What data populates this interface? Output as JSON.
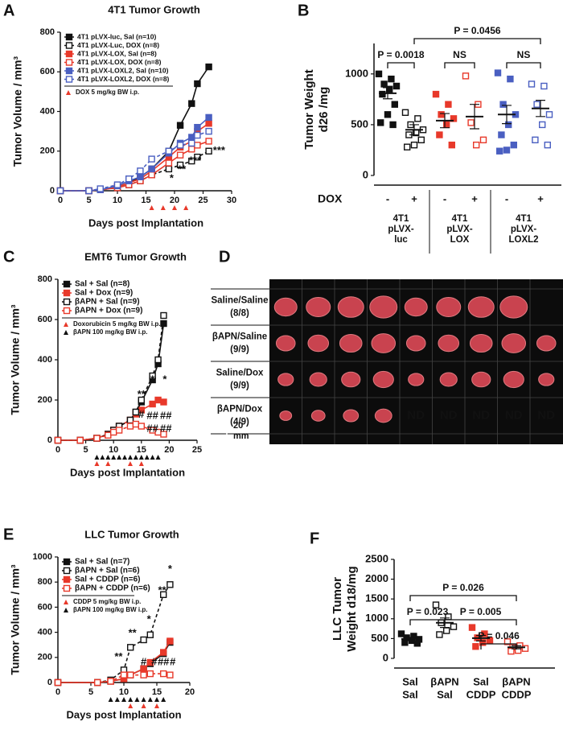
{
  "chart_data": [
    {
      "type": "line",
      "panel_label": "A",
      "title": "4T1 Tumor Growth",
      "x_label": "Days post Implantation",
      "y_label": "Tumor Volume / mm³",
      "x": [
        0,
        5,
        7,
        10,
        12,
        14,
        16,
        19,
        21,
        23,
        24,
        26
      ],
      "xlim": [
        0,
        30
      ],
      "xticks": [
        0,
        5,
        10,
        15,
        20,
        25,
        30
      ],
      "ylim": [
        0,
        800
      ],
      "yticks": [
        0,
        200,
        400,
        600,
        800
      ],
      "legend": "upper left",
      "series": [
        {
          "name": "4T1 pLVX-luc, Sal (n=10)",
          "color": "#111111",
          "filled": true,
          "dashed": false,
          "values": [
            0,
            0,
            5,
            20,
            40,
            70,
            110,
            200,
            330,
            440,
            540,
            625
          ]
        },
        {
          "name": "4T1 pLVX-Luc, DOX (n=8)",
          "color": "#111111",
          "filled": false,
          "dashed": true,
          "values": [
            0,
            0,
            5,
            15,
            30,
            50,
            80,
            110,
            130,
            150,
            170,
            200
          ]
        },
        {
          "name": "4T1 pLVX-LOX, Sal (n=8)",
          "color": "#e8392a",
          "filled": true,
          "dashed": false,
          "values": [
            0,
            0,
            5,
            20,
            40,
            60,
            100,
            170,
            220,
            250,
            300,
            340
          ]
        },
        {
          "name": "4T1 pLVX-LOX, DOX (n=8)",
          "color": "#e8392a",
          "filled": false,
          "dashed": false,
          "values": [
            0,
            0,
            5,
            15,
            30,
            50,
            80,
            140,
            180,
            210,
            230,
            250
          ]
        },
        {
          "name": "4T1 pLVX-LOXL2, Sal (n=10)",
          "color": "#4a5fc1",
          "filled": true,
          "dashed": false,
          "values": [
            0,
            0,
            5,
            25,
            50,
            70,
            110,
            190,
            240,
            270,
            320,
            370
          ]
        },
        {
          "name": "4T1 pLVX-LOXL2, DOX (n=8)",
          "color": "#4a5fc1",
          "filled": false,
          "dashed": true,
          "values": [
            0,
            0,
            10,
            30,
            60,
            100,
            160,
            200,
            230,
            240,
            280,
            300
          ]
        }
      ],
      "legend_notes": [
        {
          "text": "DOX 5 mg/kg BW i.p.",
          "color": "#e8392a",
          "days": [
            16,
            18,
            20,
            22
          ]
        }
      ],
      "annotations": [
        {
          "text": "***",
          "x": 27.8,
          "y": 200,
          "color": "#111111"
        },
        {
          "text": "***",
          "x": 23.6,
          "y": 150,
          "color": "#111111"
        },
        {
          "text": "**",
          "x": 21.3,
          "y": 105,
          "color": "#111111"
        },
        {
          "text": "*",
          "x": 19.5,
          "y": 60,
          "color": "#111111"
        }
      ]
    },
    {
      "type": "dot",
      "panel_label": "B",
      "y_label": [
        "Tumor Weight",
        "d26 /mg"
      ],
      "ylim": [
        0,
        1300
      ],
      "yticks": [
        0,
        500,
        1000
      ],
      "groups": [
        {
          "color": "#111111",
          "filled": true,
          "values": [
            1000,
            950,
            900,
            880,
            850,
            800,
            700,
            600,
            520,
            500
          ],
          "mean": 810,
          "sem": 55
        },
        {
          "color": "#111111",
          "filled": false,
          "values": [
            620,
            560,
            500,
            450,
            420,
            400,
            350,
            300,
            280
          ],
          "mean": 450,
          "sem": 50
        },
        {
          "color": "#e8392a",
          "filled": true,
          "values": [
            800,
            700,
            600,
            560,
            500,
            400,
            300
          ],
          "mean": 540,
          "sem": 70
        },
        {
          "color": "#e8392a",
          "filled": false,
          "values": [
            980,
            700,
            520,
            350,
            300
          ],
          "mean": 580,
          "sem": 120
        },
        {
          "color": "#4a5fc1",
          "filled": true,
          "values": [
            1010,
            950,
            700,
            600,
            500,
            400,
            300,
            250,
            240
          ],
          "mean": 600,
          "sem": 90
        },
        {
          "color": "#4a5fc1",
          "filled": false,
          "values": [
            900,
            880,
            700,
            600,
            500,
            350,
            300
          ],
          "mean": 660,
          "sem": 80
        }
      ],
      "row_title": "DOX",
      "group_rows": [
        [
          "-",
          "+",
          "-",
          "+",
          "-",
          "+"
        ]
      ],
      "group_names": [
        {
          "lines": [
            "4T1",
            "pLVX-",
            "luc"
          ],
          "span": [
            0,
            1
          ]
        },
        {
          "lines": [
            "4T1",
            "pLVX-",
            "LOX"
          ],
          "span": [
            2,
            3
          ]
        },
        {
          "lines": [
            "4T1",
            "pLVX-",
            "LOXL2"
          ],
          "span": [
            4,
            5
          ]
        }
      ],
      "comparisons": [
        {
          "text": "P = 0.0018",
          "between": [
            0,
            1
          ]
        },
        {
          "text": "NS",
          "between": [
            2,
            3
          ]
        },
        {
          "text": "NS",
          "between": [
            4,
            5
          ]
        },
        {
          "text": "P = 0.0456",
          "between": [
            1,
            5
          ]
        }
      ]
    },
    {
      "type": "line",
      "panel_label": "C",
      "title": "EMT6 Tumor Growth",
      "x_label": "Days post Implantation",
      "y_label": "Tumor Volume / mm³",
      "x": [
        0,
        4,
        7,
        9,
        10,
        11,
        13,
        14,
        15,
        17,
        18,
        19
      ],
      "xlim": [
        0,
        25
      ],
      "xticks": [
        0,
        5,
        10,
        15,
        20,
        25
      ],
      "ylim": [
        0,
        800
      ],
      "yticks": [
        0,
        200,
        400,
        600,
        800
      ],
      "legend": "upper left",
      "series": [
        {
          "name": "Sal + Sal (n=8)",
          "color": "#111111",
          "filled": true,
          "dashed": false,
          "values": [
            0,
            0,
            10,
            30,
            50,
            70,
            100,
            140,
            190,
            300,
            380,
            580
          ]
        },
        {
          "name": "Sal + Dox (n=9)",
          "color": "#e8392a",
          "filled": true,
          "dashed": false,
          "values": [
            0,
            0,
            10,
            30,
            50,
            70,
            100,
            130,
            150,
            180,
            200,
            190
          ]
        },
        {
          "name": "βAPN + Sal (n=9)",
          "color": "#111111",
          "filled": false,
          "dashed": true,
          "values": [
            0,
            0,
            10,
            30,
            50,
            70,
            100,
            140,
            200,
            320,
            400,
            620
          ]
        },
        {
          "name": "βAPN + Dox (n=9)",
          "color": "#e8392a",
          "filled": false,
          "dashed": true,
          "values": [
            0,
            0,
            10,
            25,
            40,
            50,
            70,
            80,
            70,
            50,
            40,
            30
          ]
        }
      ],
      "legend_notes": [
        {
          "text": "Doxorubicin 5 mg/kg BW i.p.",
          "color": "#e8392a",
          "days": [
            7,
            9,
            13,
            15
          ]
        },
        {
          "text": "βAPN 100 mg/kg BW i.p.",
          "color": "#111111",
          "days": [
            7,
            8,
            9,
            10,
            11,
            12,
            13,
            14,
            15,
            16,
            17,
            18
          ]
        }
      ],
      "annotations": [
        {
          "text": "*",
          "x": 17,
          "y": 300,
          "color": "#e8392a"
        },
        {
          "text": "*",
          "x": 19.2,
          "y": 300,
          "color": "#e8392a"
        },
        {
          "text": "**",
          "x": 15,
          "y": 225,
          "color": "#e8392a"
        },
        {
          "text": "#",
          "x": 15,
          "y": 125,
          "color": "#e8392a"
        },
        {
          "text": "##",
          "x": 17,
          "y": 120,
          "color": "#e8392a"
        },
        {
          "text": "##",
          "x": 19.4,
          "y": 120,
          "color": "#e8392a"
        },
        {
          "text": "##",
          "x": 17,
          "y": 55,
          "color": "#e8392a"
        },
        {
          "text": "##",
          "x": 19.4,
          "y": 55,
          "color": "#e8392a"
        }
      ]
    },
    {
      "type": "line",
      "panel_label": "E",
      "title": "LLC Tumor Growth",
      "x_label": "Days post Implantation",
      "y_label": "Tumor Volume / mm³",
      "x": [
        0,
        6,
        8,
        10,
        11,
        13,
        14,
        16,
        17
      ],
      "xlim": [
        0,
        20
      ],
      "xticks": [
        0,
        5,
        10,
        15,
        20
      ],
      "ylim": [
        0,
        1000
      ],
      "yticks": [
        0,
        200,
        400,
        600,
        800,
        1000
      ],
      "legend": "upper left",
      "series": [
        {
          "name": "Sal + Sal (n=7)",
          "color": "#111111",
          "filled": true,
          "dashed": false,
          "values": [
            0,
            0,
            10,
            30,
            60,
            110,
            150,
            230,
            320
          ]
        },
        {
          "name": "βAPN + Sal (n=6)",
          "color": "#111111",
          "filled": false,
          "dashed": true,
          "values": [
            0,
            0,
            20,
            100,
            280,
            340,
            380,
            700,
            780
          ]
        },
        {
          "name": "Sal + CDDP (n=6)",
          "color": "#e8392a",
          "filled": true,
          "dashed": false,
          "values": [
            0,
            0,
            10,
            30,
            60,
            110,
            160,
            240,
            330
          ]
        },
        {
          "name": "βAPN + CDDP (n=6)",
          "color": "#e8392a",
          "filled": false,
          "dashed": true,
          "values": [
            0,
            0,
            10,
            60,
            60,
            60,
            70,
            70,
            60
          ]
        }
      ],
      "legend_notes": [
        {
          "text": "CDDP 5 mg/kg BW i.p.",
          "color": "#e8392a",
          "days": [
            11,
            13,
            15
          ]
        },
        {
          "text": "βAPN 100 mg/kg BW i.p.",
          "color": "#111111",
          "days": [
            8,
            9,
            10,
            11,
            12,
            13,
            14,
            15,
            16
          ]
        }
      ],
      "annotations": [
        {
          "text": "*",
          "x": 17,
          "y": 900,
          "color": "#111111"
        },
        {
          "text": "**",
          "x": 15.8,
          "y": 730,
          "color": "#111111"
        },
        {
          "text": "*",
          "x": 13.8,
          "y": 500,
          "color": "#111111"
        },
        {
          "text": "**",
          "x": 11.3,
          "y": 390,
          "color": "#111111"
        },
        {
          "text": "**",
          "x": 9.2,
          "y": 200,
          "color": "#111111"
        },
        {
          "text": "#",
          "x": 13,
          "y": 160,
          "color": "#e8392a"
        },
        {
          "text": "#",
          "x": 14.6,
          "y": 160,
          "color": "#e8392a"
        },
        {
          "text": "##",
          "x": 16,
          "y": 160,
          "color": "#e8392a"
        },
        {
          "text": "#",
          "x": 17.4,
          "y": 160,
          "color": "#e8392a"
        }
      ]
    },
    {
      "type": "dot",
      "panel_label": "F",
      "y_label": [
        "LLC Tumor",
        "Weight d18/mg"
      ],
      "ylim": [
        0,
        2500
      ],
      "yticks": [
        0,
        500,
        1000,
        1500,
        2000,
        2500
      ],
      "groups": [
        {
          "color": "#111111",
          "filled": true,
          "values": [
            620,
            560,
            520,
            480,
            450,
            400,
            380
          ],
          "mean": 490,
          "sem": 40
        },
        {
          "color": "#111111",
          "filled": false,
          "values": [
            1350,
            1050,
            900,
            800,
            700,
            600
          ],
          "mean": 900,
          "sem": 120
        },
        {
          "color": "#e8392a",
          "filled": true,
          "values": [
            780,
            620,
            520,
            450,
            400,
            300
          ],
          "mean": 510,
          "sem": 70
        },
        {
          "color": "#e8392a",
          "filled": false,
          "values": [
            420,
            320,
            280,
            250,
            200,
            180
          ],
          "mean": 280,
          "sem": 40
        }
      ],
      "group_rows": [
        [
          "Sal",
          "βAPN",
          "Sal",
          "βAPN"
        ],
        [
          "Sal",
          "Sal",
          "CDDP",
          "CDDP"
        ]
      ],
      "comparisons": [
        {
          "text": "P = 0.026",
          "between": [
            0,
            3
          ]
        },
        {
          "text": "P = 0.023",
          "between": [
            0,
            1
          ]
        },
        {
          "text": "P = 0.005",
          "between": [
            1,
            3
          ]
        },
        {
          "text": "P = 0.046",
          "between": [
            2,
            3
          ]
        }
      ]
    }
  ],
  "photo_panel": {
    "panel_label": "D",
    "nd_text": "ND",
    "scale_label": [
      "20",
      "mm"
    ],
    "rows": [
      {
        "label": "Saline/Saline",
        "count": "(8/8)",
        "tumors": 8
      },
      {
        "label": "βAPN/Saline",
        "count": "(9/9)",
        "tumors": 9
      },
      {
        "label": "Saline/Dox",
        "count": "(9/9)",
        "tumors": 9
      },
      {
        "label": "βAPN/Dox",
        "count": "(4/9)",
        "tumors": 4,
        "not_detected": 5
      }
    ]
  }
}
